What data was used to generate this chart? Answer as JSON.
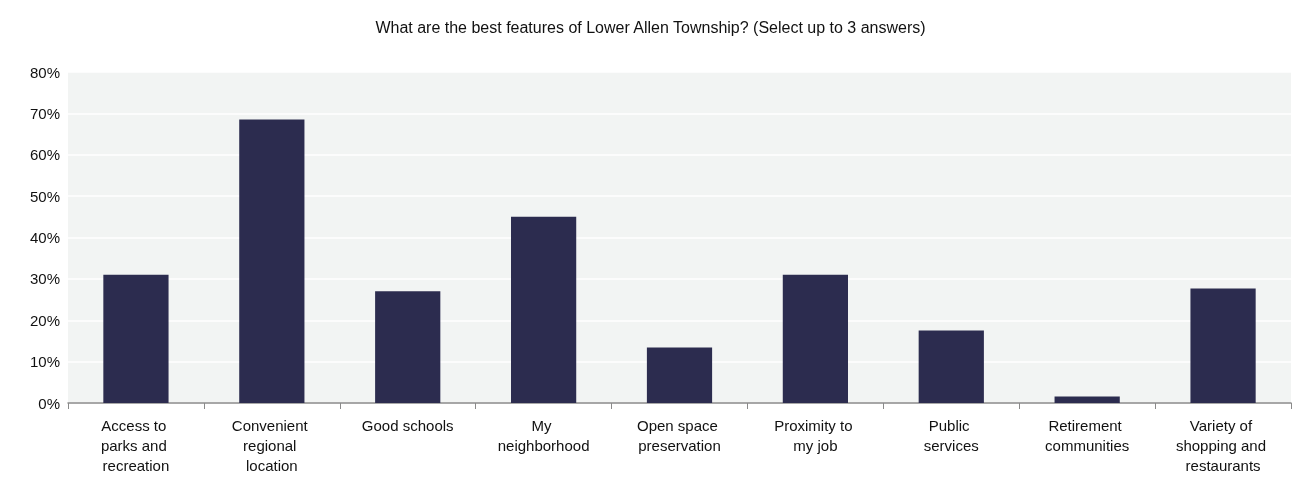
{
  "chart_data": {
    "type": "bar",
    "title": "What are the best features of Lower Allen Township? (Select up to 3 answers)",
    "categories": [
      "Access to parks and recreation",
      "Convenient regional location",
      "Good schools",
      "My neighborhood",
      "Open space preservation",
      "Proximity to my job",
      "Public services",
      "Retirement communities",
      "Variety of shopping and restaurants"
    ],
    "values": [
      31,
      68.5,
      27,
      45,
      13.4,
      31,
      17.5,
      1.6,
      27.7
    ],
    "color": "#2c2c4f",
    "ylim": [
      0,
      80
    ],
    "yticks": [
      {
        "value": 0,
        "label": "0%"
      },
      {
        "value": 10,
        "label": "10%"
      },
      {
        "value": 20,
        "label": "20%"
      },
      {
        "value": 30,
        "label": "30%"
      },
      {
        "value": 40,
        "label": "40%"
      },
      {
        "value": 50,
        "label": "50%"
      },
      {
        "value": 60,
        "label": "60%"
      },
      {
        "value": 70,
        "label": "70%"
      },
      {
        "value": 80,
        "label": "80%"
      }
    ],
    "grid": true
  }
}
